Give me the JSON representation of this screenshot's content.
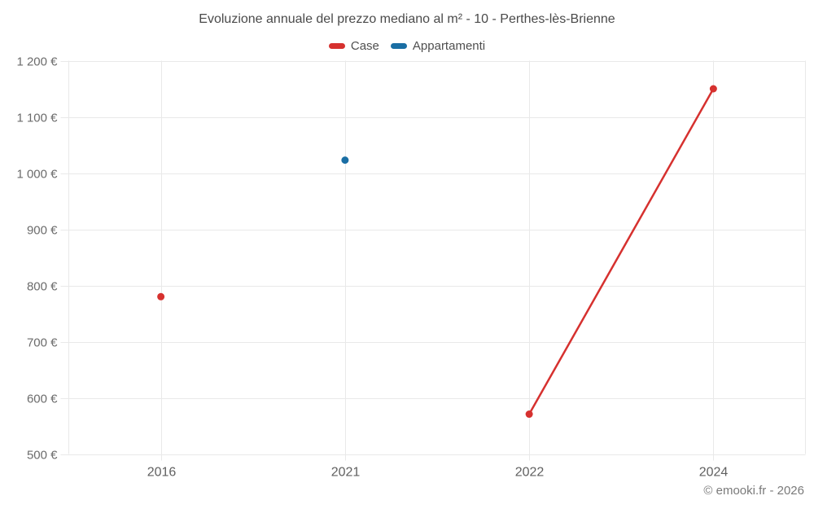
{
  "header": {
    "title": "Evoluzione annuale del prezzo mediano al m² - 10 - Perthes-lès-Brienne"
  },
  "footer": {
    "credit": "© emooki.fr - 2026"
  },
  "chart_data": {
    "type": "line",
    "title": "Evoluzione annuale del prezzo mediano al m² - 10 - Perthes-lès-Brienne",
    "categories": [
      "2016",
      "2021",
      "2022",
      "2024"
    ],
    "series": [
      {
        "name": "Case",
        "color": "#d6312f",
        "values": [
          780,
          null,
          571,
          1150
        ]
      },
      {
        "name": "Appartamenti",
        "color": "#1a6ea4",
        "values": [
          null,
          1023,
          null,
          null
        ]
      }
    ],
    "ylim": [
      500,
      1200
    ],
    "y_ticks": [
      {
        "value": 1200,
        "label": "1 200 €"
      },
      {
        "value": 1100,
        "label": "1 100 €"
      },
      {
        "value": 1000,
        "label": "1 000 €"
      },
      {
        "value": 900,
        "label": "900 €"
      },
      {
        "value": 800,
        "label": "800 €"
      },
      {
        "value": 700,
        "label": "700 €"
      },
      {
        "value": 600,
        "label": "600 €"
      },
      {
        "value": 500,
        "label": "500 €"
      }
    ],
    "xlabel": "",
    "ylabel": "",
    "grid": true,
    "legend_position": "top",
    "span_gaps": false,
    "styles": {
      "grid_color": "#e9e9e9",
      "axis_tick_length_left": 10,
      "axis_tick_length_bottom": 8,
      "point_radius": 4.5,
      "line_width": 2.5
    }
  }
}
